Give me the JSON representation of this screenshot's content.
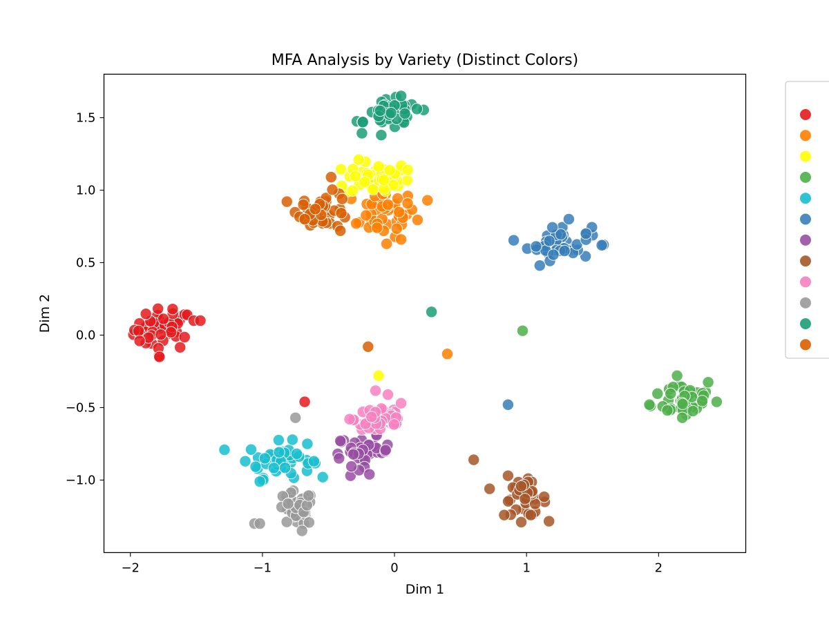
{
  "chart_data": {
    "type": "scatter",
    "title": "MFA Analysis by Variety (Distinct Colors)",
    "xlabel": "Dim 1",
    "ylabel": "Dim 2",
    "xlim": [
      -2.2,
      2.66
    ],
    "ylim": [
      -1.5,
      1.8
    ],
    "xticks": [
      -2,
      -1,
      0,
      1,
      2
    ],
    "xtick_labels": [
      "−2",
      "−1",
      "0",
      "1",
      "2"
    ],
    "yticks": [
      -1.0,
      -0.5,
      0.0,
      0.5,
      1.0,
      1.5
    ],
    "ytick_labels": [
      "−1.0",
      "−0.5",
      "0.0",
      "0.5",
      "1.0",
      "1.5"
    ],
    "grid": false,
    "legend_position": "outside-right",
    "series": [
      {
        "color": "#e41a1c",
        "center": [
          -1.75,
          0.04
        ],
        "spread": [
          0.11,
          0.07
        ],
        "count": 45,
        "extra_points": [
          [
            -1.93,
            -0.04
          ],
          [
            -1.52,
            0.1
          ],
          [
            -1.47,
            0.1
          ],
          [
            -1.78,
            -0.15
          ],
          [
            -1.68,
            0.18
          ],
          [
            -0.68,
            -0.46
          ]
        ]
      },
      {
        "color": "#ff7f00",
        "center": [
          -0.08,
          0.84
        ],
        "spread": [
          0.12,
          0.08
        ],
        "count": 45,
        "extra_points": [
          [
            0.25,
            0.93
          ],
          [
            0.4,
            -0.13
          ],
          [
            -0.06,
            0.63
          ],
          [
            0.05,
            0.66
          ],
          [
            -0.29,
            0.77
          ]
        ]
      },
      {
        "color": "#ffff00",
        "center": [
          -0.13,
          1.08
        ],
        "spread": [
          0.12,
          0.06
        ],
        "count": 40,
        "extra_points": [
          [
            -0.12,
            -0.28
          ],
          [
            -0.4,
            1.03
          ],
          [
            0.1,
            1.14
          ]
        ]
      },
      {
        "color": "#4daf4a",
        "center": [
          2.2,
          -0.43
        ],
        "spread": [
          0.12,
          0.07
        ],
        "count": 40,
        "extra_points": [
          [
            0.97,
            0.03
          ],
          [
            1.93,
            -0.48
          ],
          [
            2.44,
            -0.46
          ],
          [
            2.18,
            -0.57
          ],
          [
            2.14,
            -0.28
          ]
        ]
      },
      {
        "color": "#17becf",
        "center": [
          -0.87,
          -0.86
        ],
        "spread": [
          0.12,
          0.06
        ],
        "count": 45,
        "extra_points": [
          [
            -1.13,
            -0.87
          ],
          [
            -0.66,
            -0.75
          ],
          [
            -1.02,
            -1.01
          ],
          [
            -0.61,
            -0.87
          ]
        ]
      },
      {
        "color": "#377eb8",
        "center": [
          1.25,
          0.64
        ],
        "spread": [
          0.12,
          0.06
        ],
        "count": 40,
        "extra_points": [
          [
            0.86,
            -0.48
          ],
          [
            1.57,
            0.62
          ],
          [
            1.1,
            0.48
          ],
          [
            1.32,
            0.8
          ],
          [
            1.45,
            0.7
          ]
        ]
      },
      {
        "color": "#984ea3",
        "center": [
          -0.23,
          -0.8
        ],
        "spread": [
          0.1,
          0.05
        ],
        "count": 35,
        "extra_points": [
          [
            -0.19,
            -0.96
          ],
          [
            -0.42,
            -0.85
          ],
          [
            -0.41,
            -0.73
          ]
        ]
      },
      {
        "color": "#a65628",
        "center": [
          0.99,
          -1.13
        ],
        "spread": [
          0.08,
          0.06
        ],
        "count": 40,
        "extra_points": [
          [
            0.6,
            -0.86
          ],
          [
            0.72,
            -1.06
          ],
          [
            0.86,
            -0.97
          ],
          [
            0.96,
            -1.29
          ]
        ]
      },
      {
        "color": "#f781bf",
        "center": [
          -0.1,
          -0.58
        ],
        "spread": [
          0.1,
          0.06
        ],
        "count": 45,
        "extra_points": [
          [
            -0.34,
            -0.58
          ],
          [
            0.05,
            -0.47
          ],
          [
            -0.05,
            -0.41
          ]
        ]
      },
      {
        "color": "#999999",
        "center": [
          -0.75,
          -1.2
        ],
        "spread": [
          0.07,
          0.06
        ],
        "count": 40,
        "extra_points": [
          [
            -0.75,
            -0.57
          ],
          [
            -1.06,
            -1.3
          ],
          [
            -1.02,
            -1.3
          ],
          [
            -0.7,
            -1.35
          ]
        ]
      },
      {
        "color": "#1b9e77",
        "center": [
          -0.02,
          1.52
        ],
        "spread": [
          0.1,
          0.05
        ],
        "count": 40,
        "extra_points": [
          [
            0.28,
            0.16
          ],
          [
            -0.24,
            1.47
          ],
          [
            0.17,
            1.56
          ],
          [
            0.05,
            1.65
          ],
          [
            -0.1,
            1.38
          ]
        ]
      },
      {
        "color": "#d95f02",
        "center": [
          -0.53,
          0.86
        ],
        "spread": [
          0.1,
          0.06
        ],
        "count": 40,
        "extra_points": [
          [
            -0.2,
            -0.08
          ],
          [
            -0.48,
            1.09
          ],
          [
            -0.69,
            0.9
          ],
          [
            -0.68,
            0.8
          ],
          [
            -0.41,
            0.72
          ]
        ]
      }
    ]
  }
}
